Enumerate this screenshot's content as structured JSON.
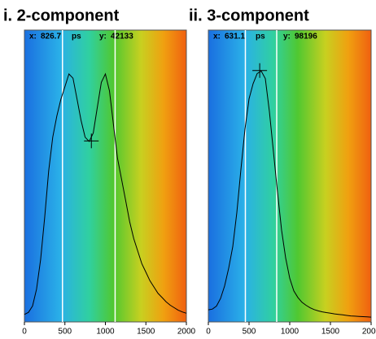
{
  "chart_data": [
    {
      "type": "line",
      "title": "i. 2-component",
      "cursor": {
        "x_label": "x:",
        "x": 826.7,
        "unit": "ps",
        "y_label": "y:",
        "y": 42133
      },
      "markers": [
        470,
        1120
      ],
      "x": [
        0,
        50,
        100,
        150,
        200,
        250,
        300,
        350,
        400,
        450,
        500,
        550,
        600,
        650,
        700,
        750,
        800,
        850,
        900,
        950,
        1000,
        1050,
        1100,
        1150,
        1200,
        1250,
        1300,
        1350,
        1400,
        1450,
        1500,
        1550,
        1600,
        1650,
        1700,
        1750,
        1800,
        1850,
        1900,
        1950,
        2000
      ],
      "series": [
        {
          "color": "#000000",
          "values": [
            1000,
            1500,
            3000,
            7000,
            14000,
            24000,
            35000,
            43000,
            48000,
            52000,
            55000,
            58000,
            57000,
            52000,
            47000,
            43000,
            42000,
            44000,
            50000,
            56000,
            58000,
            54000,
            46000,
            38000,
            33000,
            28000,
            23000,
            19000,
            16000,
            13000,
            11000,
            9000,
            7500,
            6000,
            5000,
            4000,
            3200,
            2600,
            2000,
            1600,
            1300
          ]
        }
      ],
      "xlim": [
        0,
        2000
      ],
      "xticks": [
        0,
        500,
        1000,
        1500,
        2000
      ],
      "ylim": [
        0,
        65700
      ]
    },
    {
      "type": "line",
      "title": "ii. 3-component",
      "cursor": {
        "x_label": "x:",
        "x": 631.1,
        "unit": "ps",
        "y_label": "y:",
        "y": 98196
      },
      "markers": [
        455,
        840
      ],
      "x": [
        0,
        50,
        100,
        150,
        200,
        250,
        300,
        350,
        400,
        450,
        500,
        550,
        600,
        650,
        700,
        750,
        800,
        850,
        900,
        950,
        1000,
        1050,
        1100,
        1150,
        1200,
        1250,
        1300,
        1350,
        1400,
        1450,
        1500,
        1550,
        1600,
        1650,
        1700,
        1750,
        1800,
        1850,
        1900,
        1950,
        2000
      ],
      "series": [
        {
          "color": "#000000",
          "values": [
            3500,
            3800,
            5000,
            8000,
            13000,
            20000,
            28500,
            42000,
            59000,
            75000,
            87000,
            93000,
            97000,
            98000,
            95000,
            82000,
            66000,
            50000,
            35000,
            24000,
            16000,
            11000,
            8400,
            6500,
            5300,
            4300,
            3600,
            3100,
            2700,
            2400,
            2200,
            1900,
            1700,
            1500,
            1300,
            1100,
            1000,
            900,
            800,
            700,
            600
          ]
        }
      ],
      "xlim": [
        0,
        2000
      ],
      "xticks": [
        0,
        500,
        1000,
        1500,
        2000
      ],
      "ylim": [
        0,
        109700
      ]
    }
  ]
}
